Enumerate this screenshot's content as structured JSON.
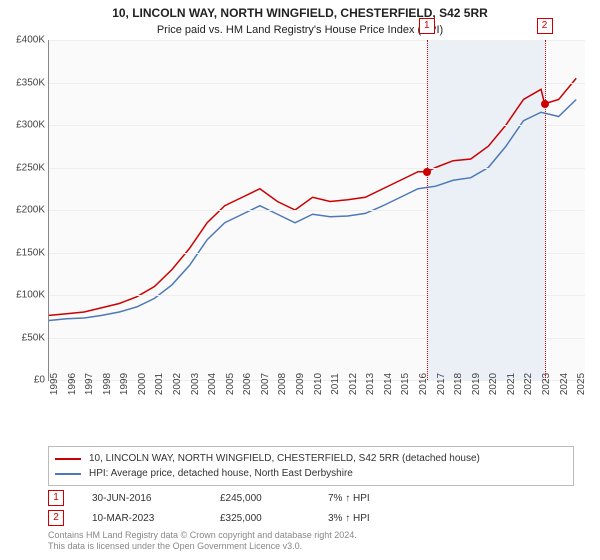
{
  "title": "10, LINCOLN WAY, NORTH WINGFIELD, CHESTERFIELD, S42 5RR",
  "subtitle": "Price paid vs. HM Land Registry's House Price Index (HPI)",
  "chart": {
    "type": "line",
    "background_color": "#fafafa",
    "grid_color": "#eeeeee",
    "axis_color": "#888888",
    "xlim": [
      1995,
      2025.5
    ],
    "ylim": [
      0,
      400000
    ],
    "yticks": [
      0,
      50000,
      100000,
      150000,
      200000,
      250000,
      300000,
      350000,
      400000
    ],
    "ytick_labels": [
      "£0",
      "£50K",
      "£100K",
      "£150K",
      "£200K",
      "£250K",
      "£300K",
      "£350K",
      "£400K"
    ],
    "xticks": [
      1995,
      1996,
      1997,
      1998,
      1999,
      2000,
      2001,
      2002,
      2003,
      2004,
      2005,
      2006,
      2007,
      2008,
      2009,
      2010,
      2011,
      2012,
      2013,
      2014,
      2015,
      2016,
      2017,
      2018,
      2019,
      2020,
      2021,
      2022,
      2023,
      2024,
      2025
    ],
    "shaded_region": {
      "xstart": 2016.5,
      "xend": 2023.2,
      "color": "#d0e0f0",
      "opacity": 0.4
    },
    "series": [
      {
        "name": "10, LINCOLN WAY, NORTH WINGFIELD, CHESTERFIELD, S42 5RR (detached house)",
        "color": "#cc0000",
        "line_width": 1.5,
        "points": [
          [
            1995,
            76000
          ],
          [
            1996,
            78000
          ],
          [
            1997,
            80000
          ],
          [
            1998,
            85000
          ],
          [
            1999,
            90000
          ],
          [
            2000,
            98000
          ],
          [
            2001,
            110000
          ],
          [
            2002,
            130000
          ],
          [
            2003,
            155000
          ],
          [
            2004,
            185000
          ],
          [
            2005,
            205000
          ],
          [
            2006,
            215000
          ],
          [
            2007,
            225000
          ],
          [
            2008,
            210000
          ],
          [
            2009,
            200000
          ],
          [
            2010,
            215000
          ],
          [
            2011,
            210000
          ],
          [
            2012,
            212000
          ],
          [
            2013,
            215000
          ],
          [
            2014,
            225000
          ],
          [
            2015,
            235000
          ],
          [
            2016,
            245000
          ],
          [
            2016.5,
            245000
          ],
          [
            2017,
            250000
          ],
          [
            2018,
            258000
          ],
          [
            2019,
            260000
          ],
          [
            2020,
            275000
          ],
          [
            2021,
            300000
          ],
          [
            2022,
            330000
          ],
          [
            2023,
            342000
          ],
          [
            2023.2,
            325000
          ],
          [
            2024,
            330000
          ],
          [
            2025,
            355000
          ]
        ]
      },
      {
        "name": "HPI: Average price, detached house, North East Derbyshire",
        "color": "#4d79b8",
        "line_width": 1.5,
        "points": [
          [
            1995,
            70000
          ],
          [
            1996,
            72000
          ],
          [
            1997,
            73000
          ],
          [
            1998,
            76000
          ],
          [
            1999,
            80000
          ],
          [
            2000,
            86000
          ],
          [
            2001,
            96000
          ],
          [
            2002,
            112000
          ],
          [
            2003,
            135000
          ],
          [
            2004,
            165000
          ],
          [
            2005,
            185000
          ],
          [
            2006,
            195000
          ],
          [
            2007,
            205000
          ],
          [
            2008,
            195000
          ],
          [
            2009,
            185000
          ],
          [
            2010,
            195000
          ],
          [
            2011,
            192000
          ],
          [
            2012,
            193000
          ],
          [
            2013,
            196000
          ],
          [
            2014,
            205000
          ],
          [
            2015,
            215000
          ],
          [
            2016,
            225000
          ],
          [
            2017,
            228000
          ],
          [
            2018,
            235000
          ],
          [
            2019,
            238000
          ],
          [
            2020,
            250000
          ],
          [
            2021,
            275000
          ],
          [
            2022,
            305000
          ],
          [
            2023,
            315000
          ],
          [
            2024,
            310000
          ],
          [
            2025,
            330000
          ]
        ]
      }
    ],
    "markers": [
      {
        "n": "1",
        "x": 2016.5,
        "y": 245000
      },
      {
        "n": "2",
        "x": 2023.2,
        "y": 325000
      }
    ],
    "marker_color": "#cc0000"
  },
  "legend": {
    "items": [
      {
        "color": "#cc0000",
        "label": "10, LINCOLN WAY, NORTH WINGFIELD, CHESTERFIELD, S42 5RR (detached house)"
      },
      {
        "color": "#4d79b8",
        "label": "HPI: Average price, detached house, North East Derbyshire"
      }
    ]
  },
  "datarows": [
    {
      "n": "1",
      "date": "30-JUN-2016",
      "price": "£245,000",
      "delta": "7% ↑ HPI"
    },
    {
      "n": "2",
      "date": "10-MAR-2023",
      "price": "£325,000",
      "delta": "3% ↑ HPI"
    }
  ],
  "attribution": {
    "line1": "Contains HM Land Registry data © Crown copyright and database right 2024.",
    "line2": "This data is licensed under the Open Government Licence v3.0."
  }
}
